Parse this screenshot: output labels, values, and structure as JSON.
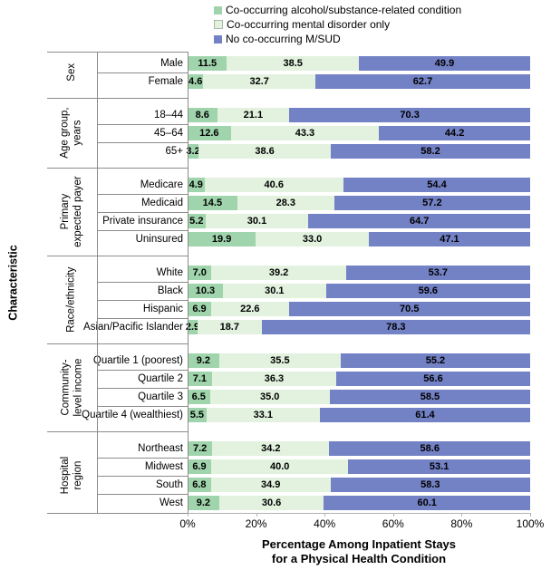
{
  "legend": {
    "items": [
      {
        "label": "Co-occurring alcohol/substance-related condition",
        "color": "#a0d4ac"
      },
      {
        "label": "Co-occurring mental disorder only",
        "color": "#e2f2df"
      },
      {
        "label": "No co-occurring M/SUD",
        "color": "#7381c5"
      }
    ]
  },
  "chart_data": {
    "type": "bar",
    "variant": "horizontal-stacked",
    "xlim": [
      0,
      100
    ],
    "x_ticks": [
      "0%",
      "20%",
      "40%",
      "60%",
      "80%",
      "100%"
    ],
    "xlabel_lines": [
      "Percentage Among Inpatient Stays",
      "for a Physical Health Condition"
    ],
    "ylabel": "Characteristic",
    "legend_position": "top",
    "grid": false,
    "series": [
      "Co-occurring alcohol/substance-related condition",
      "Co-occurring mental disorder only",
      "No co-occurring M/SUD"
    ],
    "series_colors": [
      "#a0d4ac",
      "#e2f2df",
      "#7381c5"
    ],
    "groups": [
      {
        "label": "Sex",
        "label_lines": [
          "Sex"
        ],
        "rows": [
          {
            "label": "Male",
            "values": [
              11.5,
              38.5,
              49.9
            ],
            "value_labels": [
              "11.5",
              "38.5",
              "49.9"
            ]
          },
          {
            "label": "Female",
            "values": [
              4.6,
              32.7,
              62.7
            ],
            "value_labels": [
              "4.6",
              "32.7",
              "62.7"
            ]
          }
        ]
      },
      {
        "label": "Age group, years",
        "label_lines": [
          "Age group,",
          "years"
        ],
        "rows": [
          {
            "label": "18–44",
            "values": [
              8.6,
              21.1,
              70.3
            ],
            "value_labels": [
              "8.6",
              "21.1",
              "70.3"
            ]
          },
          {
            "label": "45–64",
            "values": [
              12.6,
              43.3,
              44.2
            ],
            "value_labels": [
              "12.6",
              "43.3",
              "44.2"
            ]
          },
          {
            "label": "65+",
            "values": [
              3.2,
              38.6,
              58.2
            ],
            "value_labels": [
              "3.2",
              "38.6",
              "58.2"
            ]
          }
        ]
      },
      {
        "label": "Primary expected payer",
        "label_lines": [
          "Primary",
          "expected payer"
        ],
        "rows": [
          {
            "label": "Medicare",
            "values": [
              4.9,
              40.6,
              54.4
            ],
            "value_labels": [
              "4.9",
              "40.6",
              "54.4"
            ]
          },
          {
            "label": "Medicaid",
            "values": [
              14.5,
              28.3,
              57.2
            ],
            "value_labels": [
              "14.5",
              "28.3",
              "57.2"
            ]
          },
          {
            "label": "Private insurance",
            "values": [
              5.2,
              30.1,
              64.7
            ],
            "value_labels": [
              "5.2",
              "30.1",
              "64.7"
            ]
          },
          {
            "label": "Uninsured",
            "values": [
              19.9,
              33.0,
              47.1
            ],
            "value_labels": [
              "19.9",
              "33.0",
              "47.1"
            ]
          }
        ]
      },
      {
        "label": "Race/ethnicity",
        "label_lines": [
          "Race/ethnicity"
        ],
        "rows": [
          {
            "label": "White",
            "values": [
              7.0,
              39.2,
              53.7
            ],
            "value_labels": [
              "7.0",
              "39.2",
              "53.7"
            ]
          },
          {
            "label": "Black",
            "values": [
              10.3,
              30.1,
              59.6
            ],
            "value_labels": [
              "10.3",
              "30.1",
              "59.6"
            ]
          },
          {
            "label": "Hispanic",
            "values": [
              6.9,
              22.6,
              70.5
            ],
            "value_labels": [
              "6.9",
              "22.6",
              "70.5"
            ]
          },
          {
            "label": "Asian/Pacific Islander",
            "values": [
              2.9,
              18.7,
              78.3
            ],
            "value_labels": [
              "2.9",
              "18.7",
              "78.3"
            ]
          }
        ]
      },
      {
        "label": "Community-level income",
        "label_lines": [
          "Community-",
          "level income"
        ],
        "rows": [
          {
            "label": "Quartile 1 (poorest)",
            "values": [
              9.2,
              35.5,
              55.2
            ],
            "value_labels": [
              "9.2",
              "35.5",
              "55.2"
            ]
          },
          {
            "label": "Quartile 2",
            "values": [
              7.1,
              36.3,
              56.6
            ],
            "value_labels": [
              "7.1",
              "36.3",
              "56.6"
            ]
          },
          {
            "label": "Quartile 3",
            "values": [
              6.5,
              35.0,
              58.5
            ],
            "value_labels": [
              "6.5",
              "35.0",
              "58.5"
            ]
          },
          {
            "label": "Quartile 4 (wealthiest)",
            "values": [
              5.5,
              33.1,
              61.4
            ],
            "value_labels": [
              "5.5",
              "33.1",
              "61.4"
            ]
          }
        ]
      },
      {
        "label": "Hospital region",
        "label_lines": [
          "Hospital",
          "region"
        ],
        "rows": [
          {
            "label": "Northeast",
            "values": [
              7.2,
              34.2,
              58.6
            ],
            "value_labels": [
              "7.2",
              "34.2",
              "58.6"
            ]
          },
          {
            "label": "Midwest",
            "values": [
              6.9,
              40.0,
              53.1
            ],
            "value_labels": [
              "6.9",
              "40.0",
              "53.1"
            ]
          },
          {
            "label": "South",
            "values": [
              6.8,
              34.9,
              58.3
            ],
            "value_labels": [
              "6.8",
              "34.9",
              "58.3"
            ]
          },
          {
            "label": "West",
            "values": [
              9.2,
              30.6,
              60.1
            ],
            "value_labels": [
              "9.2",
              "30.6",
              "60.1"
            ]
          }
        ]
      }
    ]
  },
  "colors": {
    "bar_green": "#a0d4ac",
    "bar_light_green": "#e2f2df",
    "bar_blue": "#7381c5",
    "label_grid_line": "#8c8c8c",
    "axis_line": "#b4b4b4",
    "text": "#000000"
  }
}
